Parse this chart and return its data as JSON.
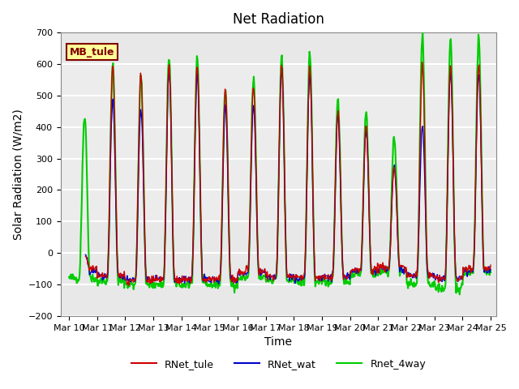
{
  "title": "Net Radiation",
  "xlabel": "Time",
  "ylabel": "Solar Radiation (W/m2)",
  "ylim": [
    -200,
    700
  ],
  "yticks": [
    -200,
    -100,
    0,
    100,
    200,
    300,
    400,
    500,
    600,
    700
  ],
  "xlim": [
    0,
    15
  ],
  "xtick_labels": [
    "Mar 10",
    "Mar 11",
    "Mar 12",
    "Mar 13",
    "Mar 14",
    "Mar 15",
    "Mar 16",
    "Mar 17",
    "Mar 18",
    "Mar 19",
    "Mar 20",
    "Mar 21",
    "Mar 22",
    "Mar 23",
    "Mar 24",
    "Mar 25"
  ],
  "xtick_positions": [
    0,
    1,
    2,
    3,
    4,
    5,
    6,
    7,
    8,
    9,
    10,
    11,
    12,
    13,
    14,
    15
  ],
  "colors": {
    "RNet_tule": "#cc0000",
    "RNet_wat": "#0000cc",
    "Rnet_4way": "#00cc00"
  },
  "line_widths": {
    "RNet_tule": 1.0,
    "RNet_wat": 1.0,
    "Rnet_4way": 1.5
  },
  "legend_entries": [
    "RNet_tule",
    "RNet_wat",
    "Rnet_4way"
  ],
  "site_label": "MB_tule",
  "site_label_color": "#800000",
  "site_label_bg": "#ffff99",
  "background_color": "#e8e8e8",
  "grid_color": "#ffffff",
  "shaded_band": [
    100,
    600
  ],
  "num_days": 15,
  "points_per_day": 48,
  "title_fontsize": 12,
  "axis_label_fontsize": 10,
  "tick_fontsize": 8
}
